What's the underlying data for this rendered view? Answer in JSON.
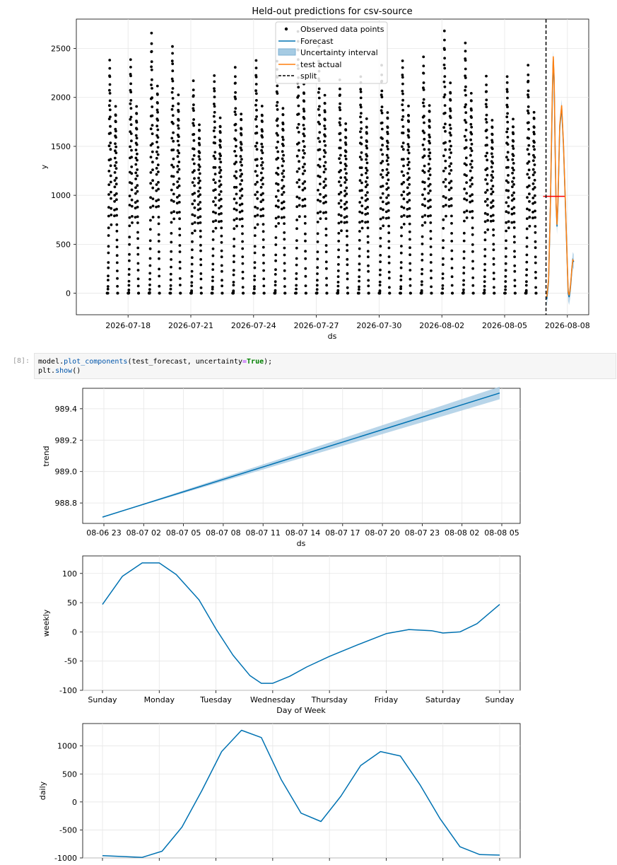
{
  "cell": {
    "prompt": "[8]:",
    "line1_obj": "model.",
    "line1_fn": "plot_components",
    "line1_args": "(test_forecast, uncertainty",
    "line1_eq": "=",
    "line1_kw": "True",
    "line1_end": ");",
    "line2_obj": "plt.",
    "line2_fn": "show",
    "line2_end": "()"
  },
  "colors": {
    "forecast": "#0072b2",
    "uncertainty": "#a6cbe3",
    "actual": "#ff7f0e",
    "split": "#000000",
    "mean_line": "#ff0000",
    "points": "#000000",
    "grid": "#e6e6e6"
  },
  "chart_data": [
    {
      "type": "scatter",
      "title": "Held-out predictions for csv-source",
      "xlabel": "ds",
      "ylabel": "y",
      "x_ticks": [
        "2026-07-18",
        "2026-07-21",
        "2026-07-24",
        "2026-07-27",
        "2026-07-30",
        "2026-08-02",
        "2026-08-05",
        "2026-08-08"
      ],
      "y_ticks": [
        0,
        500,
        1000,
        1500,
        2000,
        2500
      ],
      "ylim": [
        -220,
        2800
      ],
      "xlim_days_range": [
        "2026-07-16",
        "2026-08-09"
      ],
      "legend": {
        "placement": "upper-center",
        "entries": [
          "Observed data points",
          "Forecast",
          "Uncertainty interval",
          "test actual",
          "split"
        ]
      },
      "daily_peaks": [
        {
          "date": "2026-07-17",
          "peak": 2390
        },
        {
          "date": "2026-07-18",
          "peak": 2400
        },
        {
          "date": "2026-07-19",
          "peak": 2660
        },
        {
          "date": "2026-07-20",
          "peak": 2540
        },
        {
          "date": "2026-07-21",
          "peak": 2170
        },
        {
          "date": "2026-07-22",
          "peak": 2240
        },
        {
          "date": "2026-07-23",
          "peak": 2310
        },
        {
          "date": "2026-07-24",
          "peak": 2390
        },
        {
          "date": "2026-07-25",
          "peak": 2380
        },
        {
          "date": "2026-07-26",
          "peak": 2680
        },
        {
          "date": "2026-07-27",
          "peak": 2540
        },
        {
          "date": "2026-07-28",
          "peak": 2180
        },
        {
          "date": "2026-07-29",
          "peak": 2230
        },
        {
          "date": "2026-07-30",
          "peak": 2330
        },
        {
          "date": "2026-07-31",
          "peak": 2390
        },
        {
          "date": "2026-08-01",
          "peak": 2420
        },
        {
          "date": "2026-08-02",
          "peak": 2690
        },
        {
          "date": "2026-08-03",
          "peak": 2570
        },
        {
          "date": "2026-08-04",
          "peak": 2220
        },
        {
          "date": "2026-08-05",
          "peak": 2230
        },
        {
          "date": "2026-08-06",
          "peak": 2330
        }
      ],
      "split_date": "2026-08-06 23:00",
      "forecast_mean": 989,
      "test_series": {
        "x_hours_from_split": [
          0,
          2,
          4,
          6,
          7,
          8,
          9,
          10,
          11,
          12,
          14,
          16,
          18,
          20,
          22,
          23,
          24,
          25,
          26,
          27,
          28,
          29
        ],
        "forecast": [
          -60,
          120,
          900,
          2000,
          2400,
          2150,
          1500,
          900,
          680,
          900,
          1700,
          1900,
          1500,
          900,
          300,
          0,
          -40,
          20,
          120,
          250,
          340,
          320
        ],
        "actual": [
          -40,
          140,
          920,
          2050,
          2420,
          2200,
          1520,
          920,
          700,
          930,
          1720,
          1920,
          1520,
          920,
          320,
          20,
          -20,
          30,
          140,
          260,
          340,
          330
        ]
      }
    },
    {
      "type": "line",
      "xlabel": "ds",
      "ylabel": "trend",
      "x_ticks": [
        "08-06 23",
        "08-07 02",
        "08-07 05",
        "08-07 08",
        "08-07 11",
        "08-07 14",
        "08-07 17",
        "08-07 20",
        "08-07 23",
        "08-08 02",
        "08-08 05"
      ],
      "y_ticks": [
        "988.8",
        "989.0",
        "989.2",
        "989.4"
      ],
      "ylim": [
        988.67,
        989.53
      ],
      "x_hours": [
        0,
        29
      ],
      "values": [
        988.71,
        989.5
      ],
      "uncertainty_upper": [
        988.71,
        989.54
      ],
      "uncertainty_lower": [
        988.71,
        989.46
      ]
    },
    {
      "type": "line",
      "xlabel": "Day of Week",
      "ylabel": "weekly",
      "categories": [
        "Sunday",
        "Monday",
        "Tuesday",
        "Wednesday",
        "Thursday",
        "Friday",
        "Saturday",
        "Sunday"
      ],
      "y_ticks": [
        -100,
        -50,
        0,
        50,
        100
      ],
      "ylim": [
        -100,
        130
      ],
      "x": [
        0,
        0.35,
        0.7,
        1.0,
        1.3,
        1.7,
        2.0,
        2.3,
        2.6,
        2.8,
        3.0,
        3.3,
        3.6,
        4.0,
        4.5,
        5.0,
        5.4,
        5.8,
        6.0,
        6.3,
        6.6,
        7.0
      ],
      "values": [
        47,
        95,
        118,
        118,
        98,
        55,
        5,
        -40,
        -75,
        -88,
        -88,
        -76,
        -60,
        -42,
        -22,
        -3,
        4,
        2,
        -2,
        0,
        14,
        47
      ]
    },
    {
      "type": "line",
      "xlabel": "",
      "ylabel": "daily",
      "y_ticks": [
        -1000,
        -500,
        0,
        500,
        1000
      ],
      "ylim": [
        -1000,
        1400
      ],
      "x_fraction_of_day": [
        0,
        0.1,
        0.15,
        0.2,
        0.25,
        0.3,
        0.35,
        0.4,
        0.45,
        0.5,
        0.55,
        0.6,
        0.65,
        0.7,
        0.75,
        0.8,
        0.85,
        0.9,
        0.95,
        1.0
      ],
      "values": [
        -960,
        -990,
        -880,
        -450,
        200,
        900,
        1280,
        1150,
        400,
        -200,
        -350,
        100,
        650,
        900,
        820,
        300,
        -300,
        -800,
        -940,
        -950
      ]
    }
  ]
}
